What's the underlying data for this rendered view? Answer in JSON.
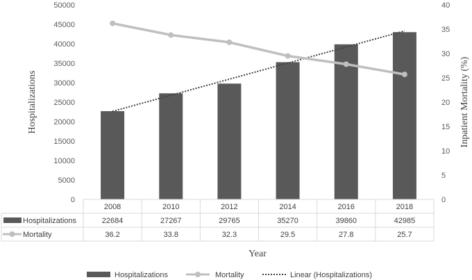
{
  "chart_data": {
    "type": "bar",
    "categories": [
      "2008",
      "2010",
      "2012",
      "2014",
      "2016",
      "2018"
    ],
    "series": [
      {
        "name": "Hospitalizations",
        "type": "bar",
        "axis": "left",
        "color": "#595959",
        "values": [
          22684,
          27267,
          29765,
          35270,
          39860,
          42985
        ]
      },
      {
        "name": "Mortality",
        "type": "line",
        "axis": "right",
        "color": "#bfbfbf",
        "values": [
          36.2,
          33.8,
          32.3,
          29.5,
          27.8,
          25.7
        ]
      }
    ],
    "trendline": {
      "name": "Linear (Hospitalizations)",
      "type": "linear",
      "of_series": "Hospitalizations",
      "color": "#404040",
      "style": "dotted"
    },
    "xlabel": "Year",
    "ylabel": "Hospitalizations",
    "y2label": "Inpatient Mortality (%)",
    "ylim": [
      0,
      50000
    ],
    "y2lim": [
      0,
      40
    ],
    "yticks": [
      "0",
      "5000",
      "10000",
      "15000",
      "20000",
      "25000",
      "30000",
      "35000",
      "40000",
      "45000",
      "50000"
    ],
    "y2ticks": [
      "0",
      "5",
      "10",
      "15",
      "20",
      "25",
      "30",
      "35",
      "40"
    ],
    "table": {
      "rows": [
        {
          "label": "Hospitalizations",
          "values": [
            "22684",
            "27267",
            "29765",
            "35270",
            "39860",
            "42985"
          ]
        },
        {
          "label": "Mortality",
          "values": [
            "36.2",
            "33.8",
            "32.3",
            "29.5",
            "27.8",
            "25.7"
          ]
        }
      ]
    },
    "legend": {
      "position": "bottom",
      "items": [
        "Hospitalizations",
        "Mortality",
        "Linear (Hospitalizations)"
      ]
    },
    "grid": false
  }
}
